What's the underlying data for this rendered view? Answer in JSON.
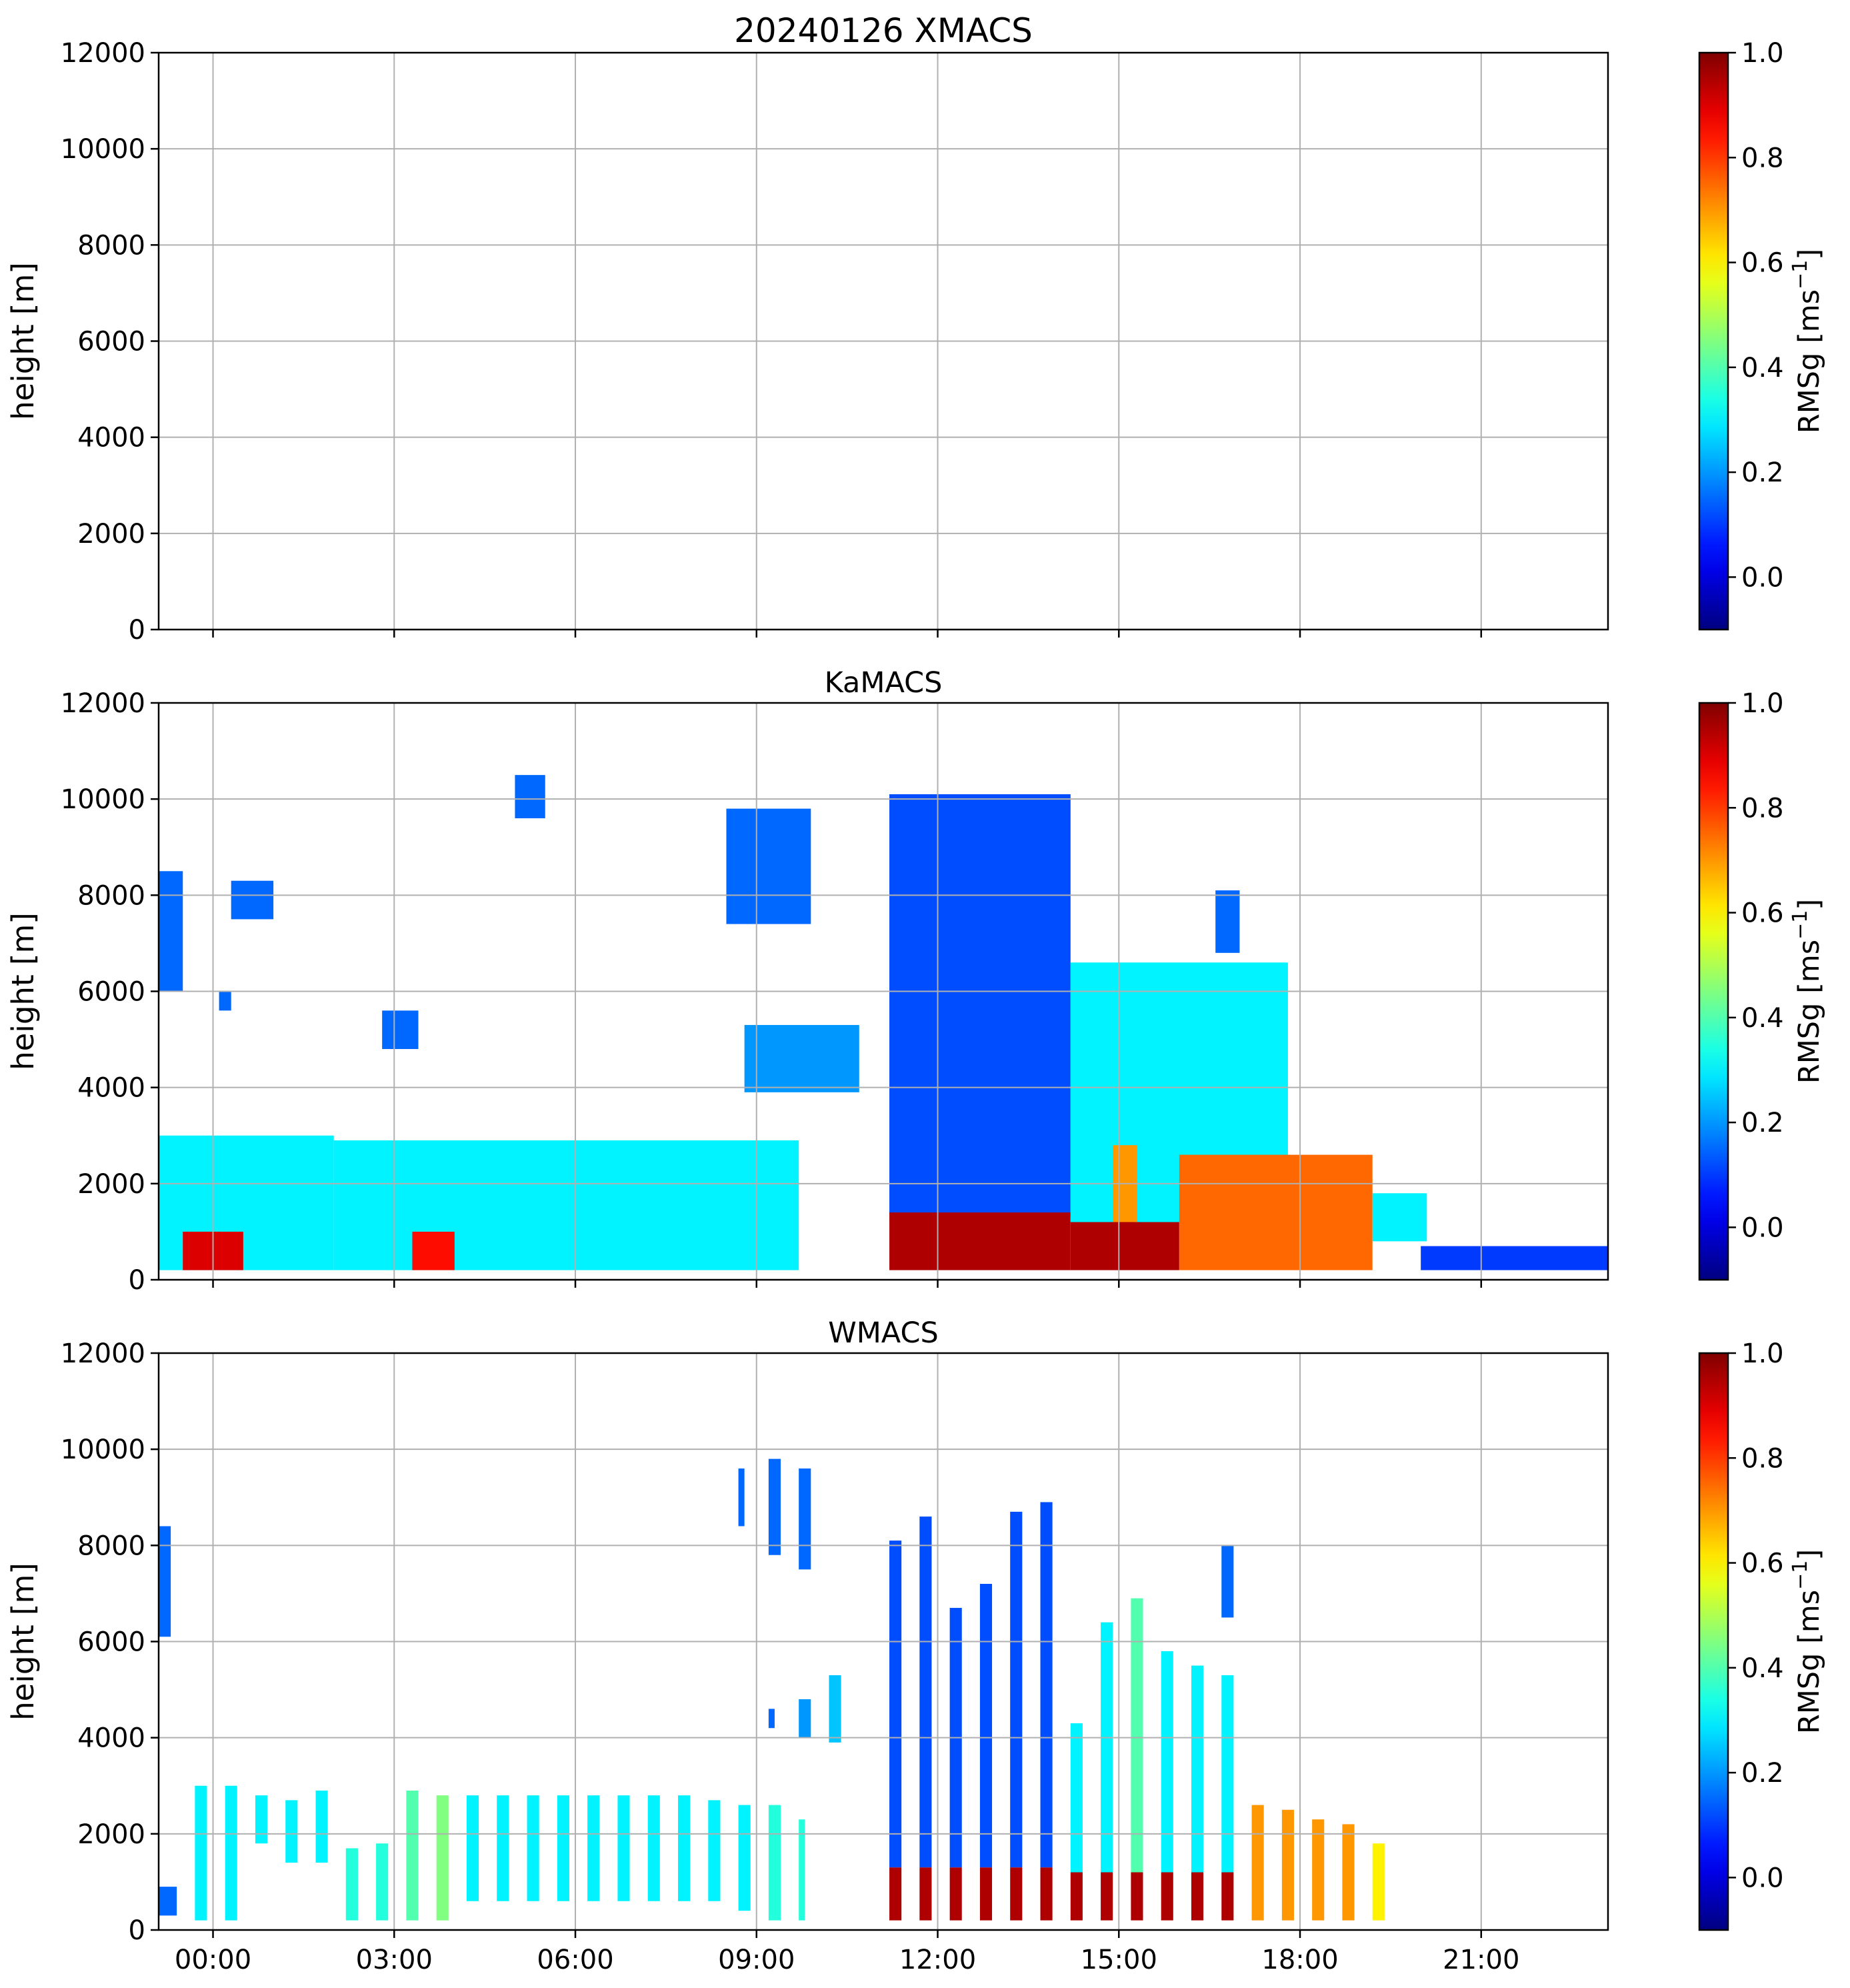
{
  "chart_data": [
    {
      "type": "heatmap",
      "title": "20240126 XMACS",
      "xlabel": "",
      "ylabel": "height [m]",
      "ylim": [
        0,
        12000
      ],
      "xlim_hours": [
        -0.9,
        23.1
      ],
      "yticks": [
        "0",
        "2000",
        "4000",
        "6000",
        "8000",
        "10000",
        "12000"
      ],
      "xticks": [],
      "grid": true,
      "colorbar": {
        "label_text": "RMSg [ms",
        "label_sup": "−1",
        "label_end": "]",
        "vmin": -0.1,
        "vmax": 1.0,
        "ticks": [
          "0.0",
          "0.2",
          "0.4",
          "0.6",
          "0.8",
          "1.0"
        ],
        "colormap": "jet"
      },
      "features": []
    },
    {
      "type": "heatmap",
      "title": "KaMACS",
      "xlabel": "",
      "ylabel": "height [m]",
      "ylim": [
        0,
        12000
      ],
      "xlim_hours": [
        -0.9,
        23.1
      ],
      "yticks": [
        "0",
        "2000",
        "4000",
        "6000",
        "8000",
        "10000",
        "12000"
      ],
      "xticks": [],
      "grid": true,
      "colorbar": {
        "label_text": "RMSg [ms",
        "label_sup": "−1",
        "label_end": "]",
        "vmin": -0.1,
        "vmax": 1.0,
        "ticks": [
          "0.0",
          "0.2",
          "0.4",
          "0.6",
          "0.8",
          "1.0"
        ],
        "colormap": "jet"
      },
      "features": [
        {
          "t0": -0.9,
          "t1": -0.5,
          "h0": 6000,
          "h1": 8500,
          "rmsg": 0.15
        },
        {
          "t0": -0.9,
          "t1": 2.0,
          "h0": 200,
          "h1": 3000,
          "rmsg": 0.3
        },
        {
          "t0": -0.5,
          "t1": 0.5,
          "h0": 200,
          "h1": 1000,
          "rmsg": 0.9
        },
        {
          "t0": 0.3,
          "t1": 1.0,
          "h0": 7500,
          "h1": 8300,
          "rmsg": 0.15
        },
        {
          "t0": 0.1,
          "t1": 0.3,
          "h0": 5600,
          "h1": 6000,
          "rmsg": 0.15
        },
        {
          "t0": 2.0,
          "t1": 9.7,
          "h0": 200,
          "h1": 2900,
          "rmsg": 0.3
        },
        {
          "t0": 3.3,
          "t1": 4.0,
          "h0": 200,
          "h1": 1000,
          "rmsg": 0.85
        },
        {
          "t0": 5.0,
          "t1": 5.5,
          "h0": 9600,
          "h1": 10500,
          "rmsg": 0.15
        },
        {
          "t0": 2.8,
          "t1": 3.4,
          "h0": 4800,
          "h1": 5600,
          "rmsg": 0.15
        },
        {
          "t0": 8.5,
          "t1": 9.9,
          "h0": 7400,
          "h1": 9800,
          "rmsg": 0.15
        },
        {
          "t0": 8.8,
          "t1": 10.7,
          "h0": 3900,
          "h1": 5300,
          "rmsg": 0.2
        },
        {
          "t0": 11.2,
          "t1": 14.2,
          "h0": 1300,
          "h1": 10100,
          "rmsg": 0.12
        },
        {
          "t0": 11.2,
          "t1": 14.2,
          "h0": 200,
          "h1": 1400,
          "rmsg": 0.95
        },
        {
          "t0": 14.2,
          "t1": 17.8,
          "h0": 1200,
          "h1": 6600,
          "rmsg": 0.3
        },
        {
          "t0": 14.2,
          "t1": 16.0,
          "h0": 200,
          "h1": 1200,
          "rmsg": 0.95
        },
        {
          "t0": 14.9,
          "t1": 15.3,
          "h0": 1200,
          "h1": 2800,
          "rmsg": 0.7
        },
        {
          "t0": 16.0,
          "t1": 19.2,
          "h0": 200,
          "h1": 2600,
          "rmsg": 0.75
        },
        {
          "t0": 19.2,
          "t1": 20.1,
          "h0": 800,
          "h1": 1800,
          "rmsg": 0.3
        },
        {
          "t0": 16.6,
          "t1": 17.0,
          "h0": 6800,
          "h1": 8100,
          "rmsg": 0.15
        },
        {
          "t0": 20.0,
          "t1": 23.1,
          "h0": 200,
          "h1": 700,
          "rmsg": 0.1
        }
      ]
    },
    {
      "type": "heatmap",
      "title": "WMACS",
      "xlabel": "",
      "ylabel": "height [m]",
      "ylim": [
        0,
        12000
      ],
      "xlim_hours": [
        -0.9,
        23.1
      ],
      "yticks": [
        "0",
        "2000",
        "4000",
        "6000",
        "8000",
        "10000",
        "12000"
      ],
      "xticks": [
        "00:00",
        "03:00",
        "06:00",
        "09:00",
        "12:00",
        "15:00",
        "18:00",
        "21:00"
      ],
      "xtick_hours": [
        0,
        3,
        6,
        9,
        12,
        15,
        18,
        21
      ],
      "grid": true,
      "colorbar": {
        "label_text": "RMSg [ms",
        "label_sup": "−1",
        "label_end": "]",
        "vmin": -0.1,
        "vmax": 1.0,
        "ticks": [
          "0.0",
          "0.2",
          "0.4",
          "0.6",
          "0.8",
          "1.0"
        ],
        "colormap": "jet"
      },
      "features": [
        {
          "t0": -0.9,
          "t1": -0.7,
          "h0": 6100,
          "h1": 8400,
          "rmsg": 0.15
        },
        {
          "t0": -0.9,
          "t1": -0.6,
          "h0": 300,
          "h1": 900,
          "rmsg": 0.15
        },
        {
          "t0": -0.3,
          "t1": -0.1,
          "h0": 200,
          "h1": 3000,
          "rmsg": 0.3
        },
        {
          "t0": 0.2,
          "t1": 0.4,
          "h0": 200,
          "h1": 3000,
          "rmsg": 0.3
        },
        {
          "t0": 0.7,
          "t1": 0.9,
          "h0": 1800,
          "h1": 2800,
          "rmsg": 0.3
        },
        {
          "t0": 1.2,
          "t1": 1.4,
          "h0": 1400,
          "h1": 2700,
          "rmsg": 0.3
        },
        {
          "t0": 1.7,
          "t1": 1.9,
          "h0": 1400,
          "h1": 2900,
          "rmsg": 0.3
        },
        {
          "t0": 2.2,
          "t1": 2.4,
          "h0": 200,
          "h1": 1700,
          "rmsg": 0.35
        },
        {
          "t0": 2.7,
          "t1": 2.9,
          "h0": 200,
          "h1": 1800,
          "rmsg": 0.35
        },
        {
          "t0": 3.2,
          "t1": 3.4,
          "h0": 200,
          "h1": 2900,
          "rmsg": 0.4
        },
        {
          "t0": 3.7,
          "t1": 3.9,
          "h0": 200,
          "h1": 2800,
          "rmsg": 0.45
        },
        {
          "t0": 4.2,
          "t1": 4.4,
          "h0": 600,
          "h1": 2800,
          "rmsg": 0.3
        },
        {
          "t0": 4.7,
          "t1": 4.9,
          "h0": 600,
          "h1": 2800,
          "rmsg": 0.3
        },
        {
          "t0": 5.2,
          "t1": 5.4,
          "h0": 600,
          "h1": 2800,
          "rmsg": 0.3
        },
        {
          "t0": 5.7,
          "t1": 5.9,
          "h0": 600,
          "h1": 2800,
          "rmsg": 0.3
        },
        {
          "t0": 6.2,
          "t1": 6.4,
          "h0": 600,
          "h1": 2800,
          "rmsg": 0.3
        },
        {
          "t0": 6.7,
          "t1": 6.9,
          "h0": 600,
          "h1": 2800,
          "rmsg": 0.3
        },
        {
          "t0": 7.2,
          "t1": 7.4,
          "h0": 600,
          "h1": 2800,
          "rmsg": 0.3
        },
        {
          "t0": 7.7,
          "t1": 7.9,
          "h0": 600,
          "h1": 2800,
          "rmsg": 0.3
        },
        {
          "t0": 8.2,
          "t1": 8.4,
          "h0": 600,
          "h1": 2700,
          "rmsg": 0.3
        },
        {
          "t0": 8.7,
          "t1": 8.9,
          "h0": 400,
          "h1": 2600,
          "rmsg": 0.3
        },
        {
          "t0": 9.2,
          "t1": 9.4,
          "h0": 200,
          "h1": 2600,
          "rmsg": 0.35
        },
        {
          "t0": 9.7,
          "t1": 9.8,
          "h0": 200,
          "h1": 2300,
          "rmsg": 0.35
        },
        {
          "t0": 8.7,
          "t1": 8.8,
          "h0": 8400,
          "h1": 9600,
          "rmsg": 0.15
        },
        {
          "t0": 9.2,
          "t1": 9.4,
          "h0": 7800,
          "h1": 9800,
          "rmsg": 0.15
        },
        {
          "t0": 9.7,
          "t1": 9.9,
          "h0": 7500,
          "h1": 9600,
          "rmsg": 0.15
        },
        {
          "t0": 9.2,
          "t1": 9.3,
          "h0": 4200,
          "h1": 4600,
          "rmsg": 0.15
        },
        {
          "t0": 9.7,
          "t1": 9.9,
          "h0": 4000,
          "h1": 4800,
          "rmsg": 0.2
        },
        {
          "t0": 10.2,
          "t1": 10.4,
          "h0": 3900,
          "h1": 5300,
          "rmsg": 0.25
        },
        {
          "t0": 11.2,
          "t1": 11.4,
          "h0": 1300,
          "h1": 8100,
          "rmsg": 0.12
        },
        {
          "t0": 11.7,
          "t1": 11.9,
          "h0": 1300,
          "h1": 8600,
          "rmsg": 0.12
        },
        {
          "t0": 12.2,
          "t1": 12.4,
          "h0": 1300,
          "h1": 6700,
          "rmsg": 0.12
        },
        {
          "t0": 12.7,
          "t1": 12.9,
          "h0": 1300,
          "h1": 7200,
          "rmsg": 0.12
        },
        {
          "t0": 13.2,
          "t1": 13.4,
          "h0": 1300,
          "h1": 8700,
          "rmsg": 0.12
        },
        {
          "t0": 13.7,
          "t1": 13.9,
          "h0": 1300,
          "h1": 8900,
          "rmsg": 0.12
        },
        {
          "t0": 11.2,
          "t1": 11.4,
          "h0": 200,
          "h1": 1300,
          "rmsg": 0.95
        },
        {
          "t0": 11.7,
          "t1": 11.9,
          "h0": 200,
          "h1": 1300,
          "rmsg": 0.95
        },
        {
          "t0": 12.2,
          "t1": 12.4,
          "h0": 200,
          "h1": 1300,
          "rmsg": 0.95
        },
        {
          "t0": 12.7,
          "t1": 12.9,
          "h0": 200,
          "h1": 1300,
          "rmsg": 0.95
        },
        {
          "t0": 13.2,
          "t1": 13.4,
          "h0": 200,
          "h1": 1300,
          "rmsg": 0.95
        },
        {
          "t0": 13.7,
          "t1": 13.9,
          "h0": 200,
          "h1": 1300,
          "rmsg": 0.95
        },
        {
          "t0": 14.2,
          "t1": 14.4,
          "h0": 1200,
          "h1": 4300,
          "rmsg": 0.3
        },
        {
          "t0": 14.7,
          "t1": 14.9,
          "h0": 1200,
          "h1": 6400,
          "rmsg": 0.3
        },
        {
          "t0": 15.2,
          "t1": 15.4,
          "h0": 1200,
          "h1": 6900,
          "rmsg": 0.4
        },
        {
          "t0": 15.7,
          "t1": 15.9,
          "h0": 1200,
          "h1": 5800,
          "rmsg": 0.3
        },
        {
          "t0": 16.2,
          "t1": 16.4,
          "h0": 1200,
          "h1": 5500,
          "rmsg": 0.3
        },
        {
          "t0": 16.7,
          "t1": 16.9,
          "h0": 1200,
          "h1": 5300,
          "rmsg": 0.3
        },
        {
          "t0": 14.2,
          "t1": 14.4,
          "h0": 200,
          "h1": 1200,
          "rmsg": 0.95
        },
        {
          "t0": 14.7,
          "t1": 14.9,
          "h0": 200,
          "h1": 1200,
          "rmsg": 0.95
        },
        {
          "t0": 15.2,
          "t1": 15.4,
          "h0": 200,
          "h1": 1200,
          "rmsg": 0.95
        },
        {
          "t0": 15.7,
          "t1": 15.9,
          "h0": 200,
          "h1": 1200,
          "rmsg": 0.95
        },
        {
          "t0": 16.2,
          "t1": 16.4,
          "h0": 200,
          "h1": 1200,
          "rmsg": 0.95
        },
        {
          "t0": 16.7,
          "t1": 16.9,
          "h0": 200,
          "h1": 1200,
          "rmsg": 0.95
        },
        {
          "t0": 16.7,
          "t1": 16.9,
          "h0": 6500,
          "h1": 8000,
          "rmsg": 0.15
        },
        {
          "t0": 17.2,
          "t1": 17.4,
          "h0": 200,
          "h1": 2600,
          "rmsg": 0.7
        },
        {
          "t0": 17.7,
          "t1": 17.9,
          "h0": 200,
          "h1": 2500,
          "rmsg": 0.7
        },
        {
          "t0": 18.2,
          "t1": 18.4,
          "h0": 200,
          "h1": 2300,
          "rmsg": 0.7
        },
        {
          "t0": 18.7,
          "t1": 18.9,
          "h0": 200,
          "h1": 2200,
          "rmsg": 0.7
        },
        {
          "t0": 19.2,
          "t1": 19.4,
          "h0": 200,
          "h1": 1800,
          "rmsg": 0.6
        }
      ]
    }
  ]
}
